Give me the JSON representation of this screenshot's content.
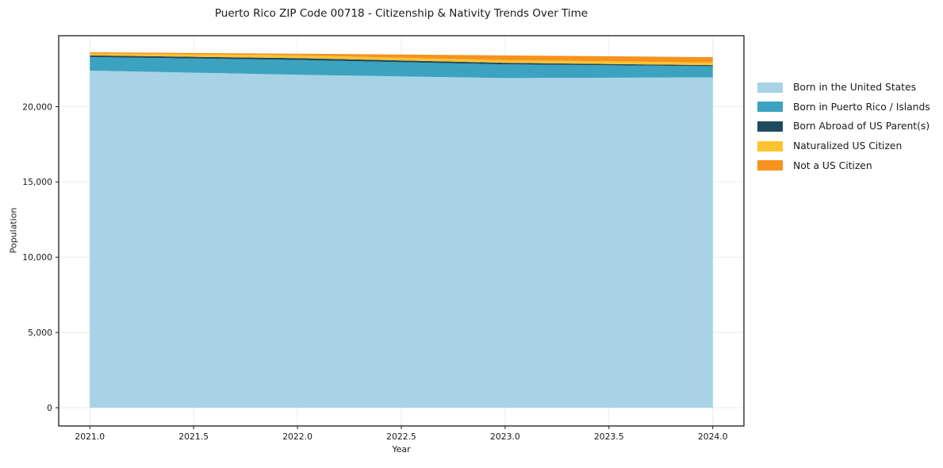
{
  "chart_data": {
    "type": "area",
    "stacked": true,
    "title": "Puerto Rico ZIP Code 00718 - Citizenship & Nativity Trends Over Time",
    "xlabel": "Year",
    "ylabel": "Population",
    "x": [
      2021,
      2022,
      2023,
      2024
    ],
    "series": [
      {
        "name": "Born in the United States",
        "color": "#A8D3E6",
        "values": [
          22400,
          22120,
          21900,
          21950
        ]
      },
      {
        "name": "Born in Puerto Rico / Islands",
        "color": "#3BA3C0",
        "values": [
          900,
          980,
          910,
          740
        ]
      },
      {
        "name": "Born Abroad of US Parent(s)",
        "color": "#1F4A5F",
        "values": [
          105,
          125,
          105,
          70
        ]
      },
      {
        "name": "Naturalized US Citizen",
        "color": "#FDC330",
        "values": [
          130,
          190,
          175,
          175
        ]
      },
      {
        "name": "Not a US Citizen",
        "color": "#F6921E",
        "values": [
          80,
          105,
          315,
          355
        ]
      }
    ],
    "xlim": [
      2020.85,
      2024.15
    ],
    "ylim": [
      -1212,
      24716
    ],
    "x_ticks": [
      {
        "value": 2021.0,
        "label": "2021.0"
      },
      {
        "value": 2021.5,
        "label": "2021.5"
      },
      {
        "value": 2022.0,
        "label": "2022.0"
      },
      {
        "value": 2022.5,
        "label": "2022.5"
      },
      {
        "value": 2023.0,
        "label": "2023.0"
      },
      {
        "value": 2023.5,
        "label": "2023.5"
      },
      {
        "value": 2024.0,
        "label": "2024.0"
      }
    ],
    "y_ticks": [
      {
        "value": 0,
        "label": "0"
      },
      {
        "value": 5000,
        "label": "5,000"
      },
      {
        "value": 10000,
        "label": "10,000"
      },
      {
        "value": 15000,
        "label": "15,000"
      },
      {
        "value": 20000,
        "label": "20,000"
      }
    ],
    "grid": true,
    "legend_position": "right-outside"
  },
  "colors": {
    "background": "#ffffff",
    "spine": "#1a1a1a",
    "grid": "rgba(0,0,0,0.08)",
    "tick_text": "#1a1a1a"
  }
}
